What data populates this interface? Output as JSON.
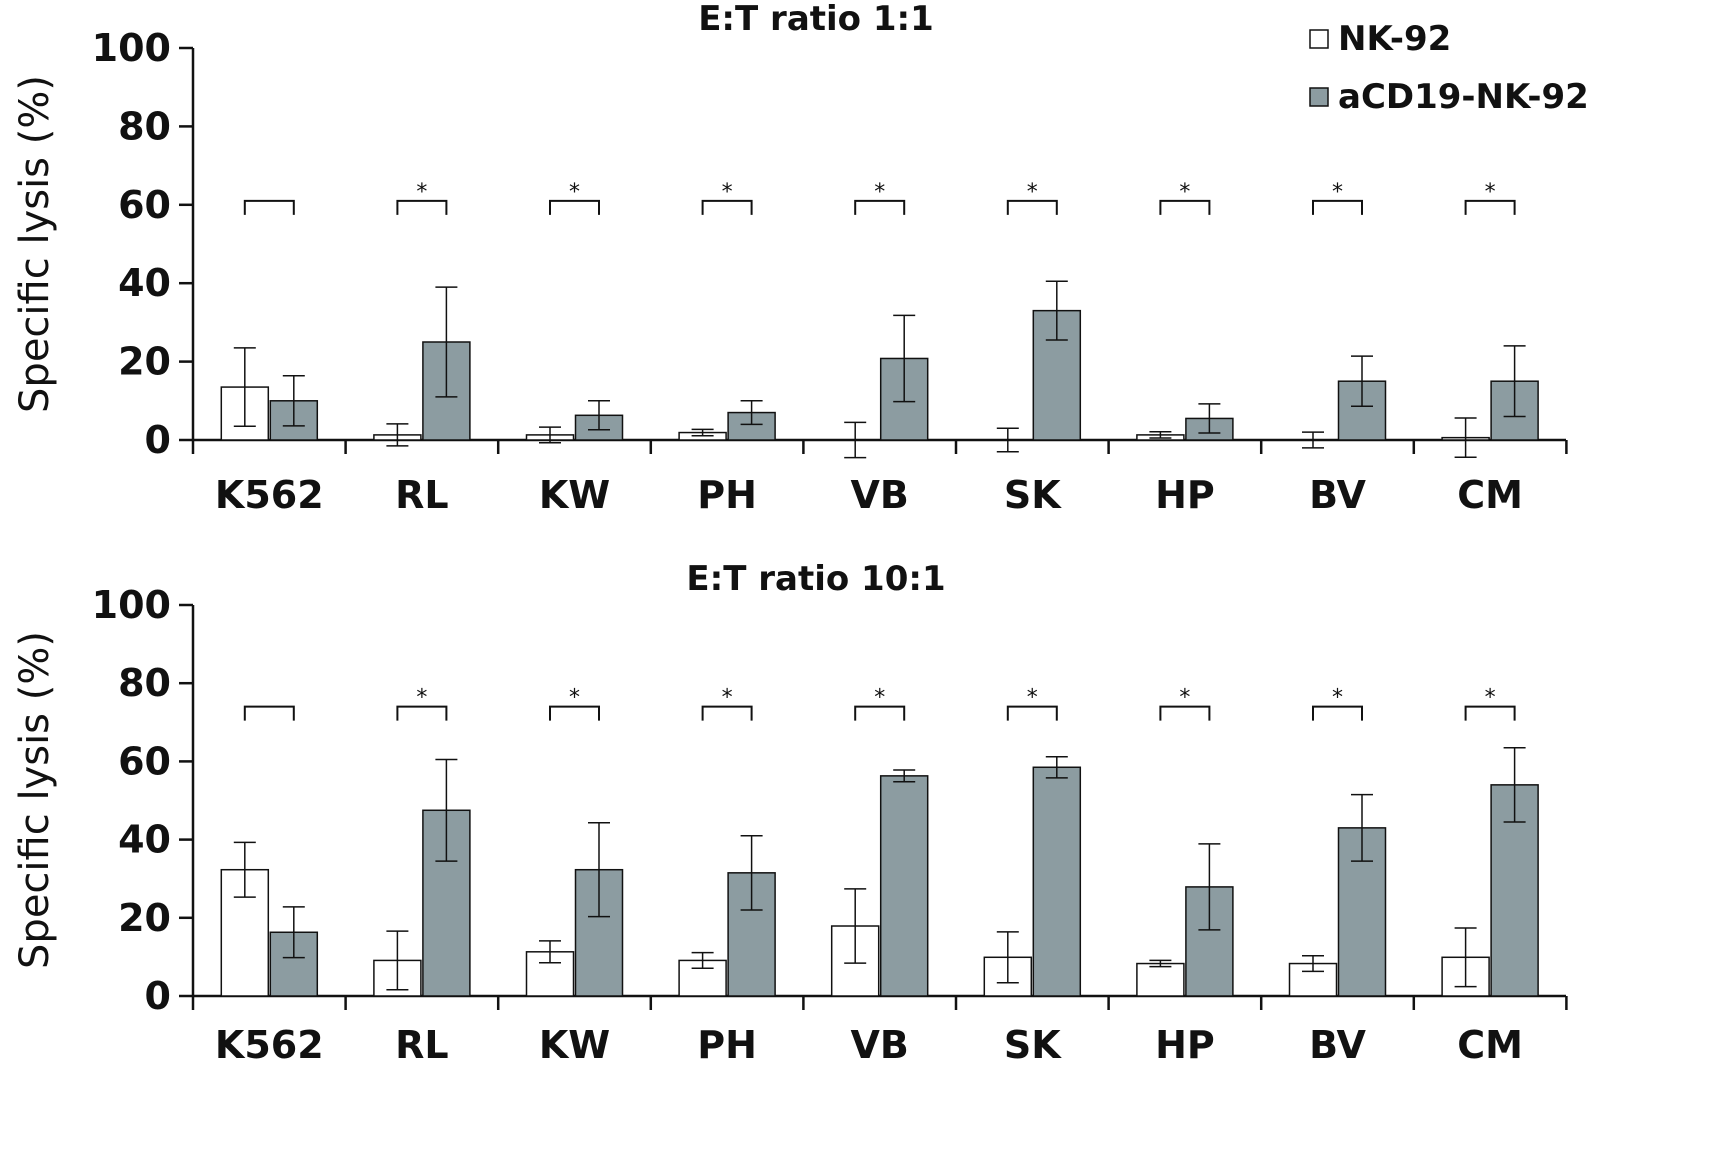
{
  "legend": {
    "location": "top-right",
    "items": [
      {
        "label": "NK-92",
        "color": "#ffffff"
      },
      {
        "label": "aCD19-NK-92",
        "color": "#8c9ca1"
      }
    ]
  },
  "chart_data": [
    {
      "type": "bar",
      "title": "E:T ratio 1:1",
      "ylabel": "Specific lysis (%)",
      "xlabel": "",
      "ylim": [
        0,
        100
      ],
      "yticks": [
        0,
        20,
        40,
        60,
        80,
        100
      ],
      "grid": false,
      "categories": [
        "K562",
        "RL",
        "KW",
        "PH",
        "VB",
        "SK",
        "HP",
        "BV",
        "CM"
      ],
      "series": [
        {
          "name": "NK-92",
          "color": "#ffffff",
          "values": [
            13.5,
            1.3,
            1.3,
            1.9,
            0.0,
            0.0,
            1.3,
            0.0,
            0.6
          ],
          "errors": [
            10.0,
            2.8,
            2.0,
            0.8,
            4.5,
            3.0,
            0.8,
            2.0,
            5.0
          ]
        },
        {
          "name": "aCD19-NK-92",
          "color": "#8c9ca1",
          "values": [
            10.0,
            25.0,
            6.3,
            7.0,
            20.8,
            33.0,
            5.5,
            15.0,
            15.0
          ],
          "errors": [
            6.4,
            14.0,
            3.7,
            3.0,
            11.0,
            7.5,
            3.7,
            6.4,
            9.0
          ]
        }
      ],
      "brackets": [
        {
          "level": 61,
          "label": ""
        },
        {
          "level": 61,
          "label": "*"
        },
        {
          "level": 61,
          "label": "*"
        },
        {
          "level": 61,
          "label": "*"
        },
        {
          "level": 61,
          "label": "*"
        },
        {
          "level": 61,
          "label": "*"
        },
        {
          "level": 61,
          "label": "*"
        },
        {
          "level": 61,
          "label": "*"
        },
        {
          "level": 61,
          "label": "*"
        }
      ]
    },
    {
      "type": "bar",
      "title": "E:T ratio 10:1",
      "ylabel": "Specific lysis (%)",
      "xlabel": "",
      "ylim": [
        0,
        100
      ],
      "yticks": [
        0,
        20,
        40,
        60,
        80,
        100
      ],
      "grid": false,
      "categories": [
        "K562",
        "RL",
        "KW",
        "PH",
        "VB",
        "SK",
        "HP",
        "BV",
        "CM"
      ],
      "series": [
        {
          "name": "NK-92",
          "color": "#ffffff",
          "values": [
            32.3,
            9.1,
            11.3,
            9.1,
            17.9,
            9.9,
            8.3,
            8.3,
            9.9
          ],
          "errors": [
            7.0,
            7.5,
            2.8,
            2.0,
            9.5,
            6.5,
            0.8,
            2.0,
            7.5
          ]
        },
        {
          "name": "aCD19-NK-92",
          "color": "#8c9ca1",
          "values": [
            16.3,
            47.5,
            32.3,
            31.5,
            56.3,
            58.5,
            27.9,
            43.0,
            54.0
          ],
          "errors": [
            6.5,
            13.0,
            12.0,
            9.5,
            1.5,
            2.7,
            11.0,
            8.5,
            9.5
          ]
        }
      ],
      "brackets": [
        {
          "level": 74,
          "label": ""
        },
        {
          "level": 74,
          "label": "*"
        },
        {
          "level": 74,
          "label": "*"
        },
        {
          "level": 74,
          "label": "*"
        },
        {
          "level": 74,
          "label": "*"
        },
        {
          "level": 74,
          "label": "*"
        },
        {
          "level": 74,
          "label": "*"
        },
        {
          "level": 74,
          "label": "*"
        },
        {
          "level": 74,
          "label": "*"
        }
      ]
    }
  ]
}
